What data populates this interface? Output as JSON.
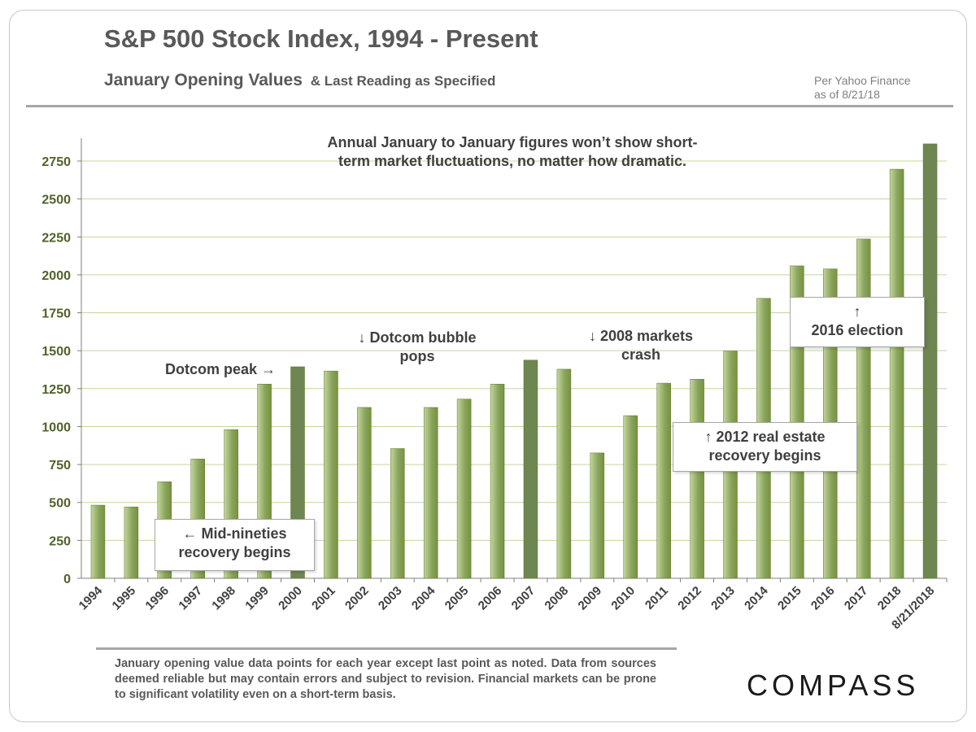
{
  "header": {
    "title": "S&P 500 Stock Index, 1994 - Present",
    "subtitle_main": "January Opening Values",
    "subtitle_small": "& Last Reading as Specified",
    "source_line1": "Per Yahoo Finance",
    "source_line2": "as of 8/21/18"
  },
  "footer": {
    "footnote": "January opening value data points for each year except last point as noted. Data from sources deemed reliable but may contain errors and subject to revision. Financial markets can be prone to significant volatility even on a short-term basis.",
    "logo": "COMPASS"
  },
  "annotations": {
    "top_note_line1": "Annual  January  to  January  figures  won’t show  short-",
    "top_note_line2": "term  market  fluctuations,  no  matter  how  dramatic.",
    "dotcom_peak": "Dotcom peak →",
    "dotcom_pops_line1": "↓ Dotcom bubble",
    "dotcom_pops_line2": "pops",
    "crash_line1": "↓ 2008 markets",
    "crash_line2": "crash",
    "mid_nineties_line1": "←  Mid-nineties",
    "mid_nineties_line2": "recovery begins",
    "real_estate_line1": "↑ 2012 real estate",
    "real_estate_line2": "recovery  begins",
    "election_line1": "↑",
    "election_line2": "2016 election"
  },
  "chart_data": {
    "type": "bar",
    "categories": [
      "1994",
      "1995",
      "1996",
      "1997",
      "1998",
      "1999",
      "2000",
      "2001",
      "2002",
      "2003",
      "2004",
      "2005",
      "2006",
      "2007",
      "2008",
      "2009",
      "2010",
      "2011",
      "2012",
      "2013",
      "2014",
      "2015",
      "2016",
      "2017",
      "2018",
      "8/21/2018"
    ],
    "values": [
      482,
      470,
      636,
      786,
      980,
      1280,
      1394,
      1366,
      1126,
      855,
      1126,
      1181,
      1280,
      1438,
      1378,
      826,
      1072,
      1286,
      1312,
      1498,
      1845,
      2059,
      2039,
      2236,
      2696,
      2863
    ],
    "highlighted": [
      "2000",
      "2007",
      "8/21/2018"
    ],
    "yticks": [
      0,
      250,
      500,
      750,
      1000,
      1250,
      1500,
      1750,
      2000,
      2250,
      2500,
      2750
    ],
    "ylim": [
      0,
      2900
    ],
    "grid": true,
    "colors": {
      "bar_light": "#c3d69b",
      "bar_mid": "#8aa55e",
      "bar_dark": "#76923c",
      "highlight": "#6e8651",
      "grid": "#c4d79b",
      "tick_text": "#4f6228"
    }
  }
}
